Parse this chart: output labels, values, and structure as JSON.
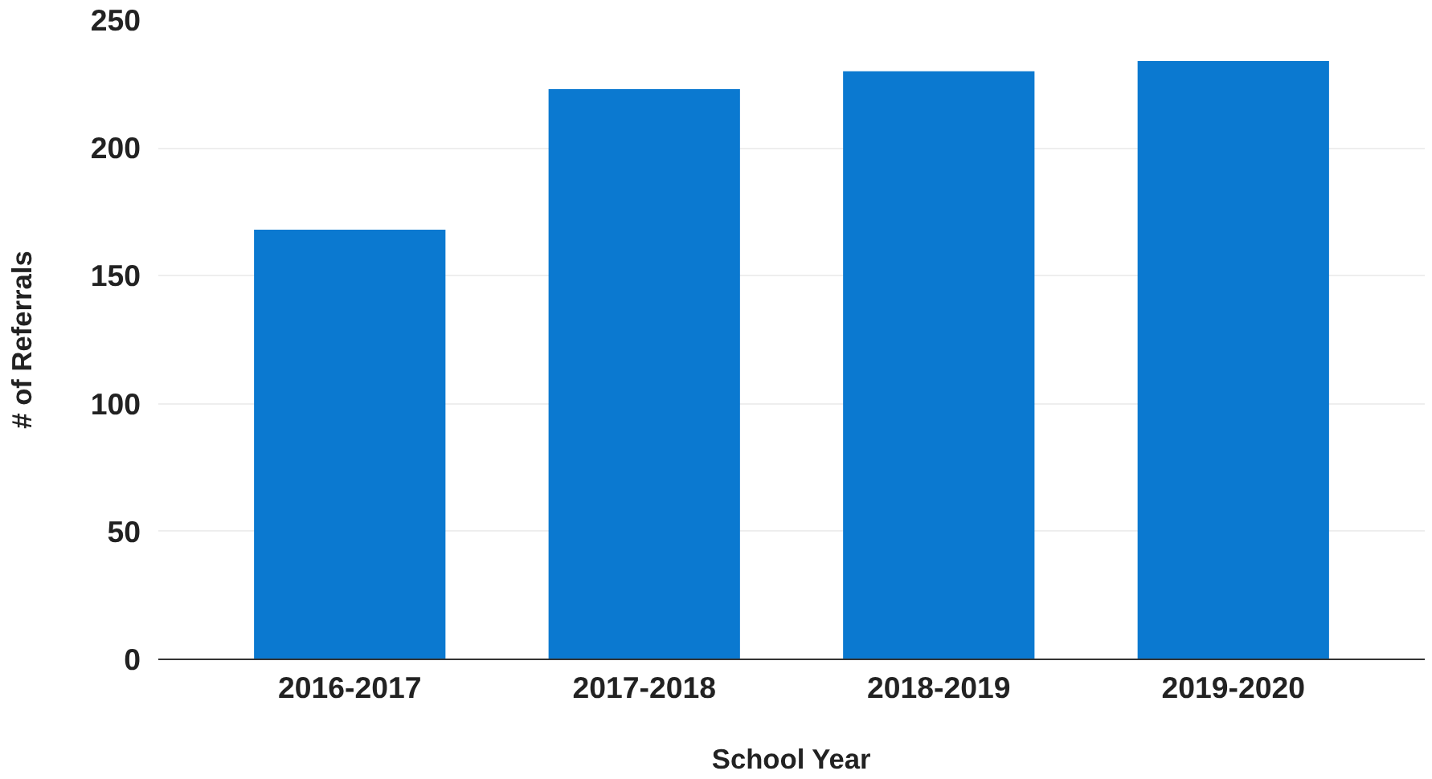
{
  "chart_data": {
    "type": "bar",
    "xlabel": "School Year",
    "ylabel": "# of Referrals",
    "categories": [
      "2016-2017",
      "2017-2018",
      "2018-2019",
      "2019-2020"
    ],
    "values": [
      168,
      223,
      230,
      234
    ],
    "color": "#0b79d0",
    "ylim": [
      0,
      250
    ],
    "yticks": [
      0,
      50,
      100,
      150,
      200,
      250
    ],
    "grid": "y"
  }
}
